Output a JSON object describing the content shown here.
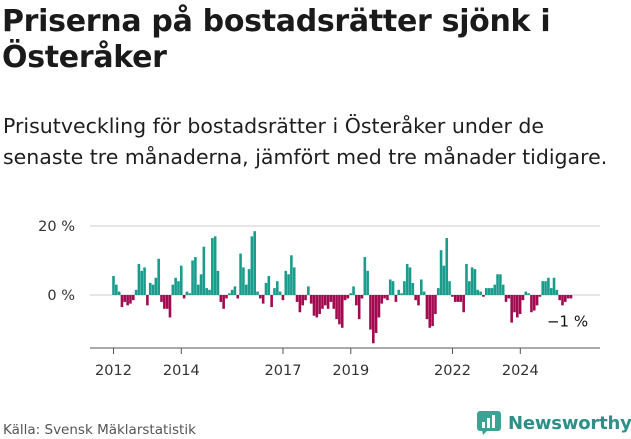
{
  "title": "Priserna på bostadsrätter sjönk i Österåker",
  "subtitle": "Prisutveckling för bostadsrätter i Österåker under de senaste tre månaderna, jämfört med tre månader tidigare.",
  "source": "Källa: Svensk Mäklarstatistik",
  "brand": "Newsworthy",
  "colors": {
    "positive": "#1a9c8c",
    "negative": "#a3094f",
    "axis": "#555555",
    "grid": "#cccccc",
    "brand": "#2d8f87"
  },
  "chart_data": {
    "type": "bar",
    "title": "Priserna på bostadsrätter sjönk i Österåker",
    "ylabel": "",
    "xlabel": "",
    "unit": "%",
    "ylim": [
      -15,
      20
    ],
    "yticks": [
      {
        "value": 20,
        "label": "20 %"
      },
      {
        "value": 0,
        "label": "0 %"
      }
    ],
    "xticks": [
      {
        "year": 2012,
        "label": "2012"
      },
      {
        "year": 2014,
        "label": "2014"
      },
      {
        "year": 2017,
        "label": "2017"
      },
      {
        "year": 2019,
        "label": "2019"
      },
      {
        "year": 2022,
        "label": "2022"
      },
      {
        "year": 2024,
        "label": "2024"
      }
    ],
    "x_start": 2012.0,
    "step": 0.0833,
    "values": [
      5.5,
      3,
      1,
      -3.5,
      -2,
      -3,
      -2.5,
      -1.5,
      1.5,
      9,
      7,
      8,
      -3,
      3.5,
      3,
      5,
      10.5,
      -2,
      -4,
      -4,
      -6.5,
      3,
      5,
      4,
      8.5,
      -1,
      1,
      0.5,
      10,
      11,
      3,
      6,
      14,
      2,
      1.5,
      16.5,
      17,
      7,
      -2,
      -4,
      -1,
      0.5,
      1.5,
      2.5,
      -1,
      12,
      8,
      3,
      7.5,
      17,
      18.5,
      1,
      -1,
      -2.5,
      3.5,
      5.5,
      -3.5,
      2,
      4,
      1,
      -1.5,
      7,
      6,
      11.5,
      8,
      -2,
      -5,
      -3,
      -1.5,
      2.5,
      -2.5,
      -6,
      -6.5,
      -5.5,
      -4,
      -3,
      -4,
      -2,
      -4,
      -7,
      -8.5,
      -9.5,
      -1.5,
      -1,
      0.5,
      2.5,
      -3,
      -7,
      -1,
      11,
      7,
      -10,
      -14,
      -11,
      -6.5,
      -2.5,
      -1,
      -1.5,
      4.5,
      4,
      -2,
      1.5,
      0.5,
      4,
      9,
      8,
      3.5,
      -1.5,
      -3,
      4.5,
      1,
      -7,
      -9.5,
      -9,
      -5.5,
      2,
      13,
      8.5,
      16.5,
      4,
      -0.5,
      -2,
      -2,
      -2,
      -5,
      9,
      4,
      8,
      7.5,
      1.5,
      1,
      -0.5,
      2,
      2,
      2,
      3,
      6,
      6,
      3,
      -2,
      -1,
      -8,
      -5,
      -6.5,
      -5.5,
      -1.5,
      1,
      0.5,
      -5,
      -4.5,
      -3,
      -0.5,
      4,
      4,
      5,
      2,
      5,
      1.5,
      -1.5,
      -3,
      -2,
      -1,
      -1
    ],
    "annotations": [
      {
        "text": "−1 %",
        "target": "last"
      }
    ]
  }
}
